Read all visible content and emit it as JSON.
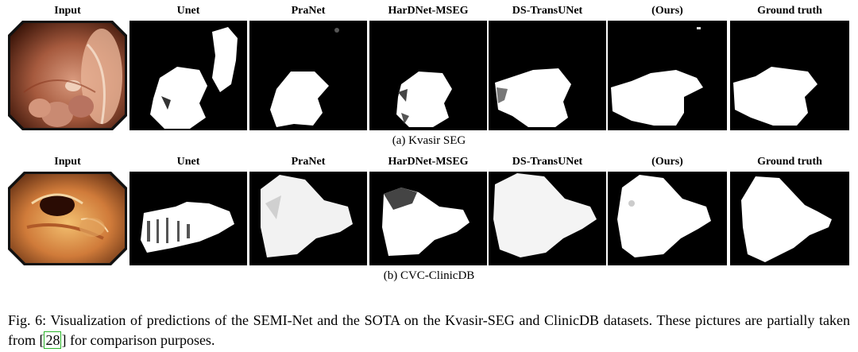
{
  "headers": [
    "Input",
    "Unet",
    "PraNet",
    "HarDNet-MSEG",
    "DS-TransUNet",
    "(Ours)",
    "Ground truth"
  ],
  "rows": [
    {
      "subcaption": "(a) Kvasir SEG"
    },
    {
      "subcaption": "(b) CVC-ClinicDB"
    }
  ],
  "caption": {
    "text_before": "Fig. 6: Visualization of predictions of the SEMI-Net and the SOTA on the Kvasir-SEG and ClinicDB datasets. These pictures are partially taken from [",
    "reference": "28",
    "text_after": "] for comparison purposes."
  }
}
